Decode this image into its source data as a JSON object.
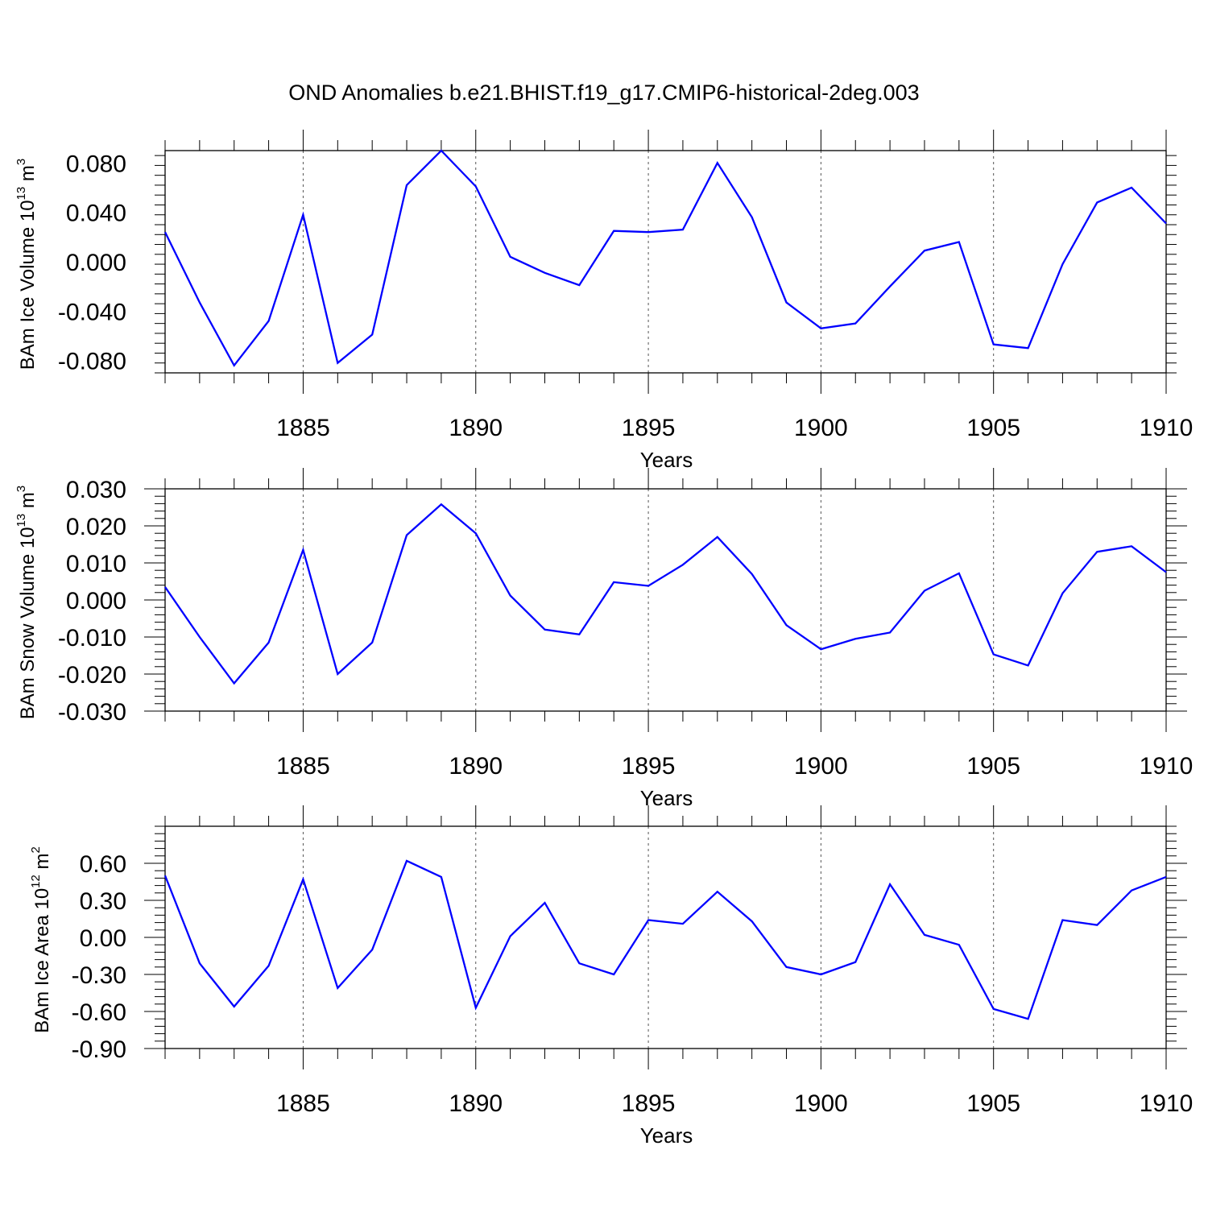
{
  "title": "OND Anomalies b.e21.BHIST.f19_g17.CMIP6-historical-2deg.003",
  "chart_data": [
    {
      "type": "line",
      "ylabel": "BAm Ice Volume 10^13 m^3",
      "ylabel_parts": {
        "text": "BAm Ice Volume 10",
        "exp1": "13",
        "unit": " m",
        "exp2": "3"
      },
      "xlabel": "Years",
      "xlim": [
        1881,
        1910
      ],
      "ylim": [
        -0.09,
        0.09
      ],
      "xticks": [
        1885,
        1890,
        1895,
        1900,
        1905,
        1910
      ],
      "yticks": [
        -0.08,
        -0.04,
        0.0,
        0.04,
        0.08
      ],
      "ytick_labels": [
        "-0.080",
        "-0.040",
        "0.000",
        "0.040",
        "0.080"
      ],
      "grid": "vertical dashed at major x ticks",
      "series": [
        {
          "color": "#0000ff",
          "x": [
            1881,
            1882,
            1883,
            1884,
            1885,
            1886,
            1887,
            1888,
            1889,
            1890,
            1891,
            1892,
            1893,
            1894,
            1895,
            1896,
            1897,
            1898,
            1899,
            1900,
            1901,
            1902,
            1903,
            1904,
            1905,
            1906,
            1907,
            1908,
            1909,
            1910
          ],
          "y": [
            0.024,
            -0.033,
            -0.084,
            -0.048,
            0.038,
            -0.082,
            -0.059,
            0.062,
            0.09,
            0.061,
            0.004,
            -0.009,
            -0.019,
            0.025,
            0.024,
            0.026,
            0.08,
            0.036,
            -0.033,
            -0.054,
            -0.05,
            -0.02,
            0.009,
            0.016,
            -0.067,
            -0.07,
            -0.002,
            0.048,
            0.06,
            0.031
          ]
        }
      ]
    },
    {
      "type": "line",
      "ylabel": "BAm Snow Volume 10^13 m^3",
      "ylabel_parts": {
        "text": "BAm Snow Volume 10",
        "exp1": "13",
        "unit": " m",
        "exp2": "3"
      },
      "xlabel": "Years",
      "xlim": [
        1881,
        1910
      ],
      "ylim": [
        -0.03,
        0.03
      ],
      "xticks": [
        1885,
        1890,
        1895,
        1900,
        1905,
        1910
      ],
      "yticks": [
        -0.03,
        -0.02,
        -0.01,
        0.0,
        0.01,
        0.02,
        0.03
      ],
      "ytick_labels": [
        "-0.030",
        "-0.020",
        "-0.010",
        "0.000",
        "0.010",
        "0.020",
        "0.030"
      ],
      "grid": "vertical dashed at major x ticks",
      "series": [
        {
          "color": "#0000ff",
          "x": [
            1881,
            1882,
            1883,
            1884,
            1885,
            1886,
            1887,
            1888,
            1889,
            1890,
            1891,
            1892,
            1893,
            1894,
            1895,
            1896,
            1897,
            1898,
            1899,
            1900,
            1901,
            1902,
            1903,
            1904,
            1905,
            1906,
            1907,
            1908,
            1909,
            1910
          ],
          "y": [
            0.0035,
            -0.01,
            -0.0225,
            -0.0115,
            0.0135,
            -0.02,
            -0.0115,
            0.0175,
            0.0258,
            0.018,
            0.0012,
            -0.008,
            -0.0093,
            0.0048,
            0.0038,
            0.0095,
            0.017,
            0.007,
            -0.0068,
            -0.0133,
            -0.0105,
            -0.0088,
            0.0025,
            0.0072,
            -0.0147,
            -0.0177,
            0.0018,
            0.013,
            0.0145,
            0.0075
          ]
        }
      ]
    },
    {
      "type": "line",
      "ylabel": "BAm Ice Area 10^12 m^2",
      "ylabel_parts": {
        "text": "BAm Ice Area 10",
        "exp1": "12",
        "unit": " m",
        "exp2": "2"
      },
      "xlabel": "Years",
      "xlim": [
        1881,
        1910
      ],
      "ylim": [
        -0.9,
        0.9
      ],
      "xticks": [
        1885,
        1890,
        1895,
        1900,
        1905,
        1910
      ],
      "yticks": [
        -0.9,
        -0.6,
        -0.3,
        0.0,
        0.3,
        0.6
      ],
      "ytick_labels": [
        "-0.90",
        "-0.60",
        "-0.30",
        "0.00",
        "0.30",
        "0.60"
      ],
      "grid": "vertical dashed at major x ticks",
      "series": [
        {
          "color": "#0000ff",
          "x": [
            1881,
            1882,
            1883,
            1884,
            1885,
            1886,
            1887,
            1888,
            1889,
            1890,
            1891,
            1892,
            1893,
            1894,
            1895,
            1896,
            1897,
            1898,
            1899,
            1900,
            1901,
            1902,
            1903,
            1904,
            1905,
            1906,
            1907,
            1908,
            1909,
            1910
          ],
          "y": [
            0.5,
            -0.21,
            -0.56,
            -0.23,
            0.47,
            -0.41,
            -0.1,
            0.62,
            0.49,
            -0.57,
            0.01,
            0.28,
            -0.21,
            -0.3,
            0.14,
            0.11,
            0.37,
            0.13,
            -0.24,
            -0.3,
            -0.2,
            0.43,
            0.02,
            -0.06,
            -0.58,
            -0.66,
            0.14,
            0.1,
            0.38,
            0.49
          ]
        }
      ]
    }
  ]
}
